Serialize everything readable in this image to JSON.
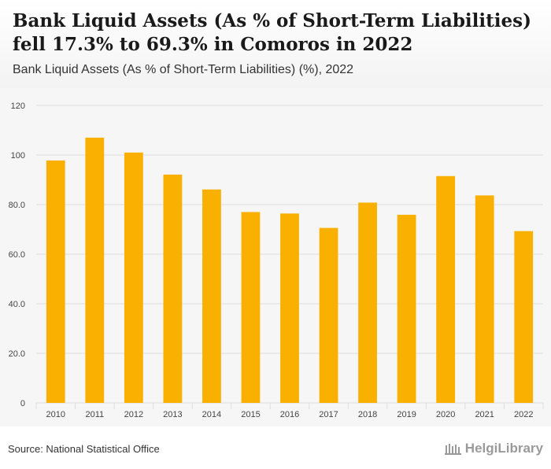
{
  "header": {
    "title": "Bank Liquid Assets (As % of Short-Term Liabilities) fell 17.3% to 69.3% in Comoros in 2022",
    "subtitle": "Bank Liquid Assets (As % of Short-Term Liabilities) (%), 2022"
  },
  "footer": {
    "source": "Source: National Statistical Office",
    "logo": "HelgiLibrary"
  },
  "colors": {
    "bar": "#f9b000",
    "grid": "#dddddd",
    "tick": "#444444"
  },
  "chart_data": {
    "type": "bar",
    "title": "Bank Liquid Assets (As % of Short-Term Liabilities) fell 17.3% to 69.3% in Comoros in 2022",
    "xlabel": "",
    "ylabel": "",
    "ylim": [
      0,
      120
    ],
    "yticks": [
      "0",
      "20.0",
      "40.0",
      "60.0",
      "80.0",
      "100",
      "120"
    ],
    "ytick_values": [
      0,
      20,
      40,
      60,
      80,
      100,
      120
    ],
    "grid": true,
    "categories": [
      "2010",
      "2011",
      "2012",
      "2013",
      "2014",
      "2015",
      "2016",
      "2017",
      "2018",
      "2019",
      "2020",
      "2021",
      "2022"
    ],
    "values": [
      97.8,
      107.0,
      101.0,
      92.1,
      86.1,
      77.0,
      76.4,
      70.6,
      80.8,
      75.9,
      91.5,
      83.7,
      69.3
    ]
  }
}
